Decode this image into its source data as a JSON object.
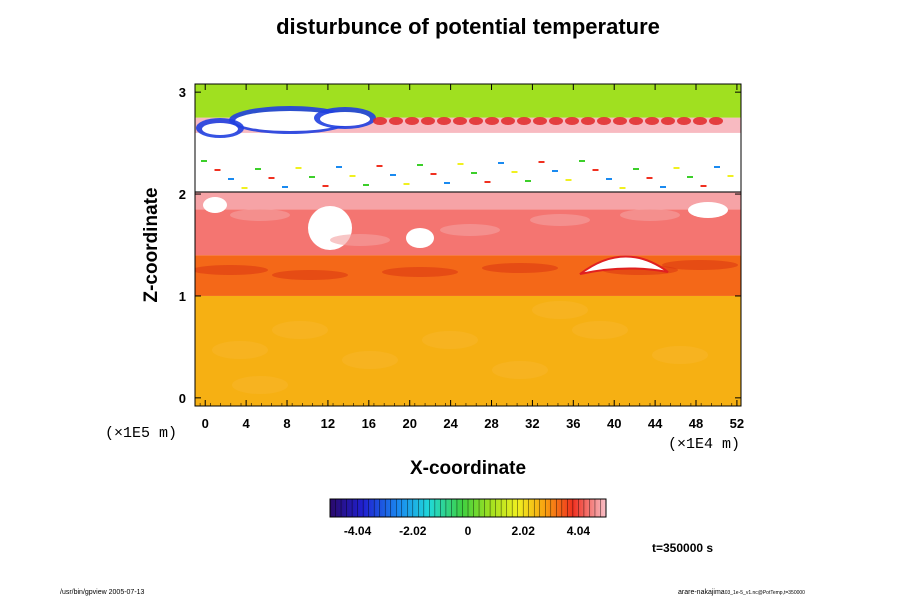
{
  "chart_data": {
    "type": "heatmap",
    "title": "disturbunce of potential temperature",
    "xlabel": "X-coordinate",
    "ylabel": "Z-coordinate",
    "x_unit": "(×1E4 m)",
    "y_unit": "(×1E5 m)",
    "xlim": [
      -1,
      52.4
    ],
    "ylim": [
      -0.08,
      3.08
    ],
    "x_ticks": [
      0,
      4,
      8,
      12,
      16,
      20,
      24,
      28,
      32,
      36,
      40,
      44,
      48,
      52
    ],
    "y_ticks": [
      0,
      1,
      2,
      3
    ],
    "colorbar": {
      "min": -5.05,
      "max": 5.05,
      "ticks": [
        -4.04,
        -2.02,
        0,
        2.02,
        4.04
      ],
      "tick_labels": [
        "-4.04",
        "-2.02",
        "0",
        "2.02",
        "4.04"
      ]
    },
    "bands": [
      {
        "z0": -0.08,
        "z1": 1.0,
        "value": 2.6,
        "description": "lower layer"
      },
      {
        "z0": 1.0,
        "z1": 1.4,
        "value": 3.3,
        "description": "transition layer"
      },
      {
        "z0": 1.4,
        "z1": 1.85,
        "value": 4.4,
        "description": "warm layer"
      },
      {
        "z0": 1.85,
        "z1": 2.02,
        "value": 4.8,
        "description": "warm layer top"
      },
      {
        "z0": 2.02,
        "z1": 2.6,
        "value": null,
        "description": "blank region"
      },
      {
        "z0": 2.6,
        "z1": 2.75,
        "value": 5.0,
        "description": "upper disturbed layer"
      },
      {
        "z0": 2.75,
        "z1": 3.08,
        "value": 0.8,
        "description": "upper layer"
      }
    ],
    "time_label": "t=350000 s"
  },
  "footer": {
    "left": "/usr/bin/gpview 2005-07-13",
    "right_main": "arare-nakajima",
    "right_sub": "03_1e-5_v1.nc@PotTemp,t=350000"
  },
  "colors": {
    "lower": "#f7a30a",
    "middle": "#ee5a1e",
    "warm": "#f04a4a",
    "upper": "#3ccf2a",
    "cold": "#1a40e0"
  }
}
